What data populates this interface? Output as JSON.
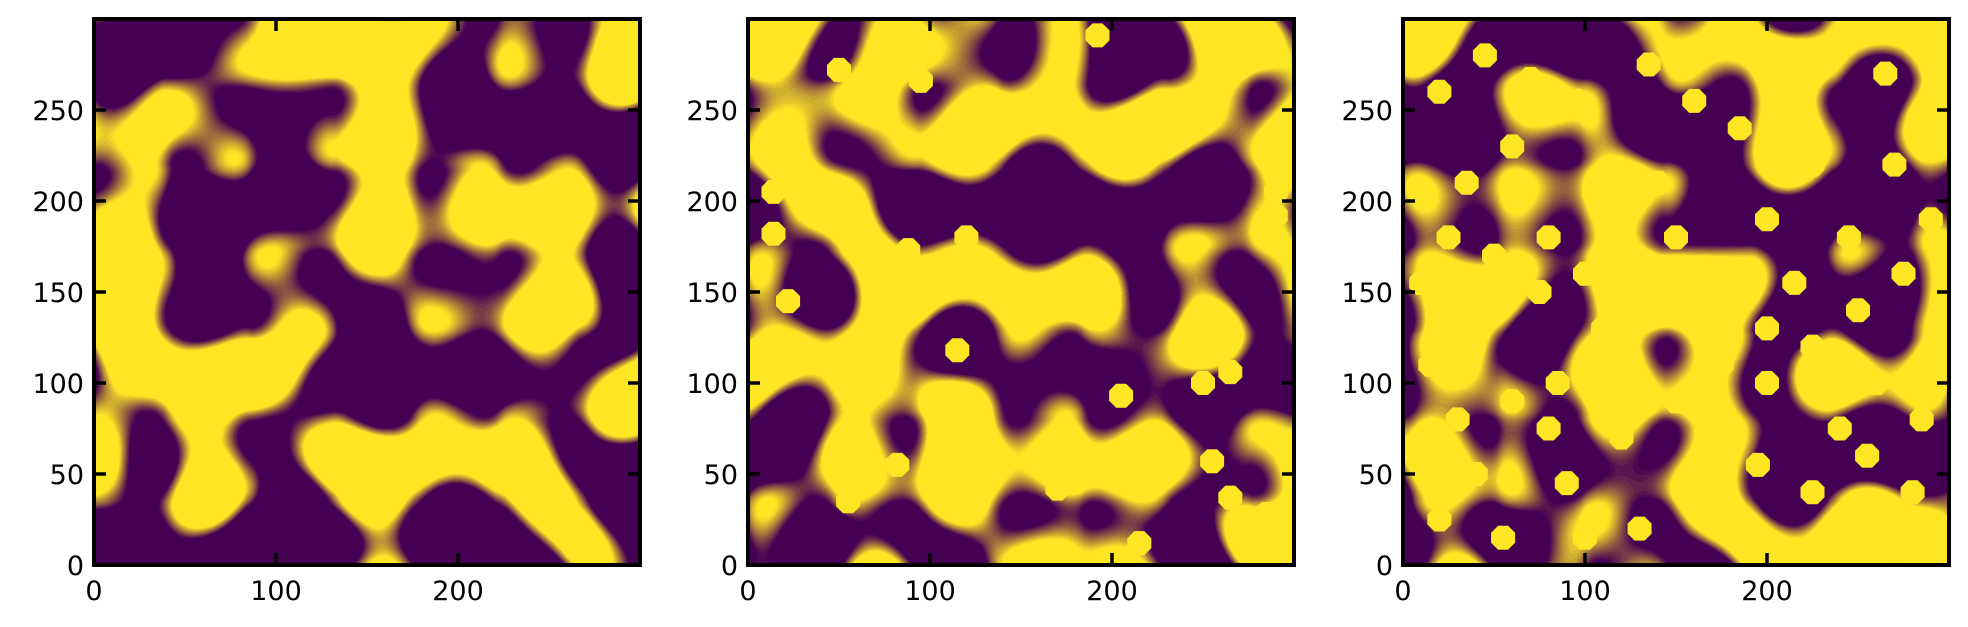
{
  "colors": {
    "background": "#440154",
    "foreground": "#fde725",
    "axis": "#000000"
  },
  "chart_data": [
    {
      "type": "heatmap",
      "title": "",
      "xlabel": "",
      "ylabel": "",
      "xlim": [
        0,
        300
      ],
      "ylim": [
        0,
        300
      ],
      "xticks": [
        0,
        100,
        200
      ],
      "yticks": [
        0,
        50,
        100,
        150,
        200,
        250
      ],
      "xtick_labels": [
        "0",
        "100",
        "200"
      ],
      "ytick_labels": [
        "0",
        "50",
        "100",
        "150",
        "200",
        "250"
      ],
      "grid": false,
      "binary_values": [
        0,
        1
      ],
      "added_circles": []
    },
    {
      "type": "heatmap",
      "title": "",
      "xlabel": "",
      "ylabel": "",
      "xlim": [
        0,
        300
      ],
      "ylim": [
        0,
        300
      ],
      "xticks": [
        0,
        100,
        200
      ],
      "yticks": [
        0,
        50,
        100,
        150,
        200,
        250
      ],
      "xtick_labels": [
        "0",
        "100",
        "200"
      ],
      "ytick_labels": [
        "0",
        "50",
        "100",
        "150",
        "200",
        "250"
      ],
      "grid": false,
      "binary_values": [
        0,
        1
      ],
      "added_circles": [
        {
          "x": 50,
          "y": 272
        },
        {
          "x": 95,
          "y": 266
        },
        {
          "x": 192,
          "y": 291
        },
        {
          "x": 14,
          "y": 205
        },
        {
          "x": 14,
          "y": 182
        },
        {
          "x": 22,
          "y": 145
        },
        {
          "x": 88,
          "y": 173
        },
        {
          "x": 120,
          "y": 180
        },
        {
          "x": 145,
          "y": 146
        },
        {
          "x": 72,
          "y": 128
        },
        {
          "x": 115,
          "y": 118
        },
        {
          "x": 70,
          "y": 112
        },
        {
          "x": 265,
          "y": 106
        },
        {
          "x": 250,
          "y": 100
        },
        {
          "x": 205,
          "y": 93
        },
        {
          "x": 290,
          "y": 205
        },
        {
          "x": 290,
          "y": 192
        },
        {
          "x": 82,
          "y": 55
        },
        {
          "x": 55,
          "y": 35
        },
        {
          "x": 170,
          "y": 42
        },
        {
          "x": 255,
          "y": 57
        },
        {
          "x": 265,
          "y": 37
        },
        {
          "x": 285,
          "y": 28
        },
        {
          "x": 215,
          "y": 12
        }
      ]
    },
    {
      "type": "heatmap",
      "title": "",
      "xlabel": "",
      "ylabel": "",
      "xlim": [
        0,
        300
      ],
      "ylim": [
        0,
        300
      ],
      "xticks": [
        0,
        100,
        200
      ],
      "yticks": [
        0,
        50,
        100,
        150,
        200,
        250
      ],
      "xtick_labels": [
        "0",
        "100",
        "200"
      ],
      "ytick_labels": [
        "0",
        "50",
        "100",
        "150",
        "200",
        "250"
      ],
      "grid": false,
      "binary_values": [
        0,
        1
      ],
      "added_circles": [
        {
          "x": 45,
          "y": 280
        },
        {
          "x": 70,
          "y": 267
        },
        {
          "x": 95,
          "y": 255
        },
        {
          "x": 20,
          "y": 260
        },
        {
          "x": 60,
          "y": 230
        },
        {
          "x": 35,
          "y": 210
        },
        {
          "x": 25,
          "y": 180
        },
        {
          "x": 10,
          "y": 155
        },
        {
          "x": 50,
          "y": 170
        },
        {
          "x": 80,
          "y": 180
        },
        {
          "x": 100,
          "y": 160
        },
        {
          "x": 75,
          "y": 150
        },
        {
          "x": 120,
          "y": 170
        },
        {
          "x": 150,
          "y": 180
        },
        {
          "x": 130,
          "y": 140
        },
        {
          "x": 160,
          "y": 135
        },
        {
          "x": 110,
          "y": 110
        },
        {
          "x": 85,
          "y": 100
        },
        {
          "x": 60,
          "y": 90
        },
        {
          "x": 30,
          "y": 80
        },
        {
          "x": 15,
          "y": 110
        },
        {
          "x": 40,
          "y": 50
        },
        {
          "x": 20,
          "y": 25
        },
        {
          "x": 55,
          "y": 15
        },
        {
          "x": 90,
          "y": 45
        },
        {
          "x": 120,
          "y": 70
        },
        {
          "x": 150,
          "y": 90
        },
        {
          "x": 175,
          "y": 110
        },
        {
          "x": 200,
          "y": 100
        },
        {
          "x": 225,
          "y": 120
        },
        {
          "x": 250,
          "y": 140
        },
        {
          "x": 275,
          "y": 160
        },
        {
          "x": 290,
          "y": 190
        },
        {
          "x": 270,
          "y": 220
        },
        {
          "x": 290,
          "y": 250
        },
        {
          "x": 265,
          "y": 270
        },
        {
          "x": 235,
          "y": 280
        },
        {
          "x": 210,
          "y": 260
        },
        {
          "x": 185,
          "y": 240
        },
        {
          "x": 160,
          "y": 255
        },
        {
          "x": 135,
          "y": 275
        },
        {
          "x": 225,
          "y": 220
        },
        {
          "x": 200,
          "y": 190
        },
        {
          "x": 245,
          "y": 180
        },
        {
          "x": 215,
          "y": 155
        },
        {
          "x": 185,
          "y": 160
        },
        {
          "x": 140,
          "y": 210
        },
        {
          "x": 105,
          "y": 205
        },
        {
          "x": 165,
          "y": 35
        },
        {
          "x": 195,
          "y": 55
        },
        {
          "x": 225,
          "y": 40
        },
        {
          "x": 255,
          "y": 60
        },
        {
          "x": 280,
          "y": 40
        },
        {
          "x": 285,
          "y": 80
        },
        {
          "x": 260,
          "y": 100
        },
        {
          "x": 240,
          "y": 75
        },
        {
          "x": 270,
          "y": 15
        },
        {
          "x": 240,
          "y": 10
        },
        {
          "x": 130,
          "y": 20
        },
        {
          "x": 100,
          "y": 15
        },
        {
          "x": 80,
          "y": 75
        },
        {
          "x": 110,
          "y": 130
        },
        {
          "x": 200,
          "y": 130
        },
        {
          "x": 170,
          "y": 75
        }
      ]
    }
  ]
}
